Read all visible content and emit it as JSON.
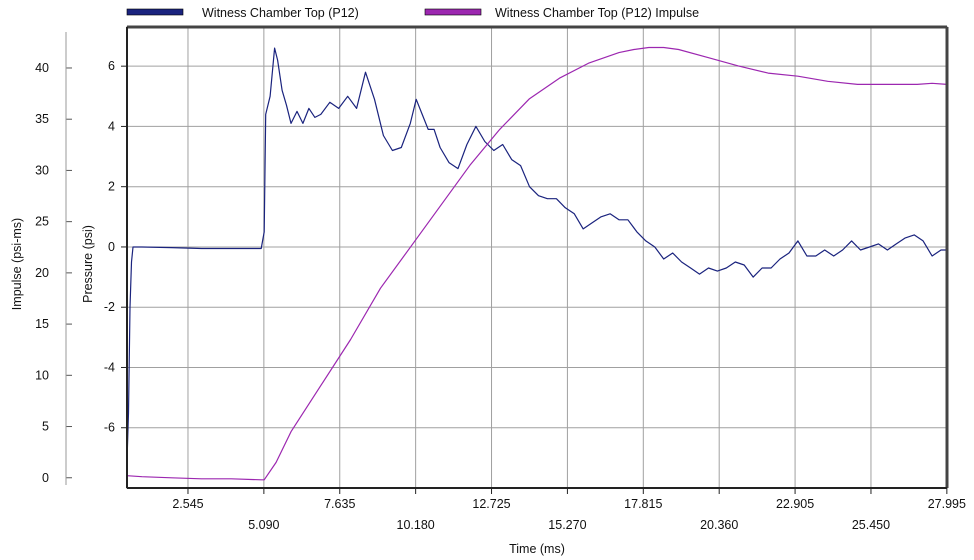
{
  "chart_data": {
    "type": "line",
    "xlabel": "Time (ms)",
    "ylabel_left_outer": "Impulse (psi-ms)",
    "ylabel_left_inner": "Pressure (psi)",
    "xlim": [
      0.5,
      28.0
    ],
    "x_ticks": [
      "2.545",
      "5.090",
      "7.635",
      "10.180",
      "12.725",
      "15.270",
      "17.815",
      "20.360",
      "22.905",
      "25.450",
      "27.995"
    ],
    "pressure_axis": {
      "ylim": [
        -8,
        7.3
      ],
      "ticks": [
        "6",
        "4",
        "2",
        "0",
        "-2",
        "-4",
        "-6"
      ]
    },
    "impulse_axis": {
      "ylim": [
        -1,
        44
      ],
      "ticks": [
        "40",
        "35",
        "30",
        "25",
        "20",
        "15",
        "10",
        "5",
        "0"
      ]
    },
    "grid": true,
    "legend_position": "top",
    "series": [
      {
        "name": "Witness Chamber Top (P12)",
        "axis": "pressure",
        "color": "#1a237e",
        "x": [
          0.5,
          0.55,
          0.6,
          0.65,
          0.7,
          0.8,
          1.0,
          2.0,
          3.0,
          4.0,
          5.0,
          5.1,
          5.15,
          5.3,
          5.45,
          5.55,
          5.7,
          5.85,
          6.0,
          6.2,
          6.4,
          6.6,
          6.8,
          7.0,
          7.3,
          7.6,
          7.9,
          8.2,
          8.5,
          8.8,
          9.1,
          9.4,
          9.7,
          10.0,
          10.2,
          10.4,
          10.6,
          10.8,
          11.0,
          11.3,
          11.6,
          11.9,
          12.2,
          12.5,
          12.8,
          13.1,
          13.4,
          13.7,
          14.0,
          14.3,
          14.6,
          14.9,
          15.2,
          15.5,
          15.8,
          16.1,
          16.4,
          16.7,
          17.0,
          17.3,
          17.6,
          17.9,
          18.2,
          18.5,
          18.8,
          19.1,
          19.4,
          19.7,
          20.0,
          20.3,
          20.6,
          20.9,
          21.2,
          21.5,
          21.8,
          22.1,
          22.4,
          22.7,
          23.0,
          23.3,
          23.6,
          23.9,
          24.2,
          24.5,
          24.8,
          25.1,
          25.4,
          25.7,
          26.0,
          26.3,
          26.6,
          26.9,
          27.2,
          27.5,
          27.8,
          28.0
        ],
        "values": [
          -7.1,
          -5.5,
          -2.0,
          -0.5,
          0.0,
          0.0,
          0.0,
          -0.02,
          -0.05,
          -0.05,
          -0.05,
          0.5,
          4.4,
          5.0,
          6.6,
          6.2,
          5.2,
          4.7,
          4.1,
          4.5,
          4.1,
          4.6,
          4.3,
          4.4,
          4.8,
          4.6,
          5.0,
          4.6,
          5.8,
          4.9,
          3.7,
          3.2,
          3.3,
          4.1,
          4.9,
          4.4,
          3.9,
          3.9,
          3.3,
          2.8,
          2.6,
          3.4,
          4.0,
          3.5,
          3.2,
          3.4,
          2.9,
          2.7,
          2.0,
          1.7,
          1.6,
          1.6,
          1.3,
          1.1,
          0.6,
          0.8,
          1.0,
          1.1,
          0.9,
          0.9,
          0.5,
          0.2,
          0.0,
          -0.4,
          -0.2,
          -0.5,
          -0.7,
          -0.9,
          -0.7,
          -0.8,
          -0.7,
          -0.5,
          -0.6,
          -1.0,
          -0.7,
          -0.7,
          -0.4,
          -0.2,
          0.2,
          -0.3,
          -0.3,
          -0.1,
          -0.3,
          -0.1,
          0.2,
          -0.1,
          0.0,
          0.1,
          -0.1,
          0.1,
          0.3,
          0.4,
          0.2,
          -0.3,
          -0.1,
          -0.1
        ]
      },
      {
        "name": "Witness Chamber Top (P12) Impulse",
        "axis": "impulse",
        "color": "#9c27b0",
        "x": [
          0.5,
          1.0,
          2.0,
          3.0,
          4.0,
          5.0,
          5.1,
          5.5,
          6.0,
          7.0,
          8.0,
          9.0,
          10.0,
          11.0,
          12.0,
          13.0,
          14.0,
          15.0,
          16.0,
          17.0,
          17.5,
          18.0,
          18.5,
          19.0,
          20.0,
          21.0,
          22.0,
          23.0,
          24.0,
          25.0,
          26.0,
          27.0,
          27.5,
          28.0
        ],
        "values": [
          0.2,
          0.1,
          0.0,
          -0.1,
          -0.1,
          -0.2,
          -0.2,
          1.5,
          4.5,
          9.0,
          13.5,
          18.5,
          22.5,
          26.5,
          30.5,
          34.0,
          37.0,
          39.0,
          40.5,
          41.5,
          41.8,
          42.0,
          42.0,
          41.8,
          41.0,
          40.2,
          39.5,
          39.2,
          38.7,
          38.4,
          38.4,
          38.4,
          38.5,
          38.4
        ]
      }
    ]
  }
}
